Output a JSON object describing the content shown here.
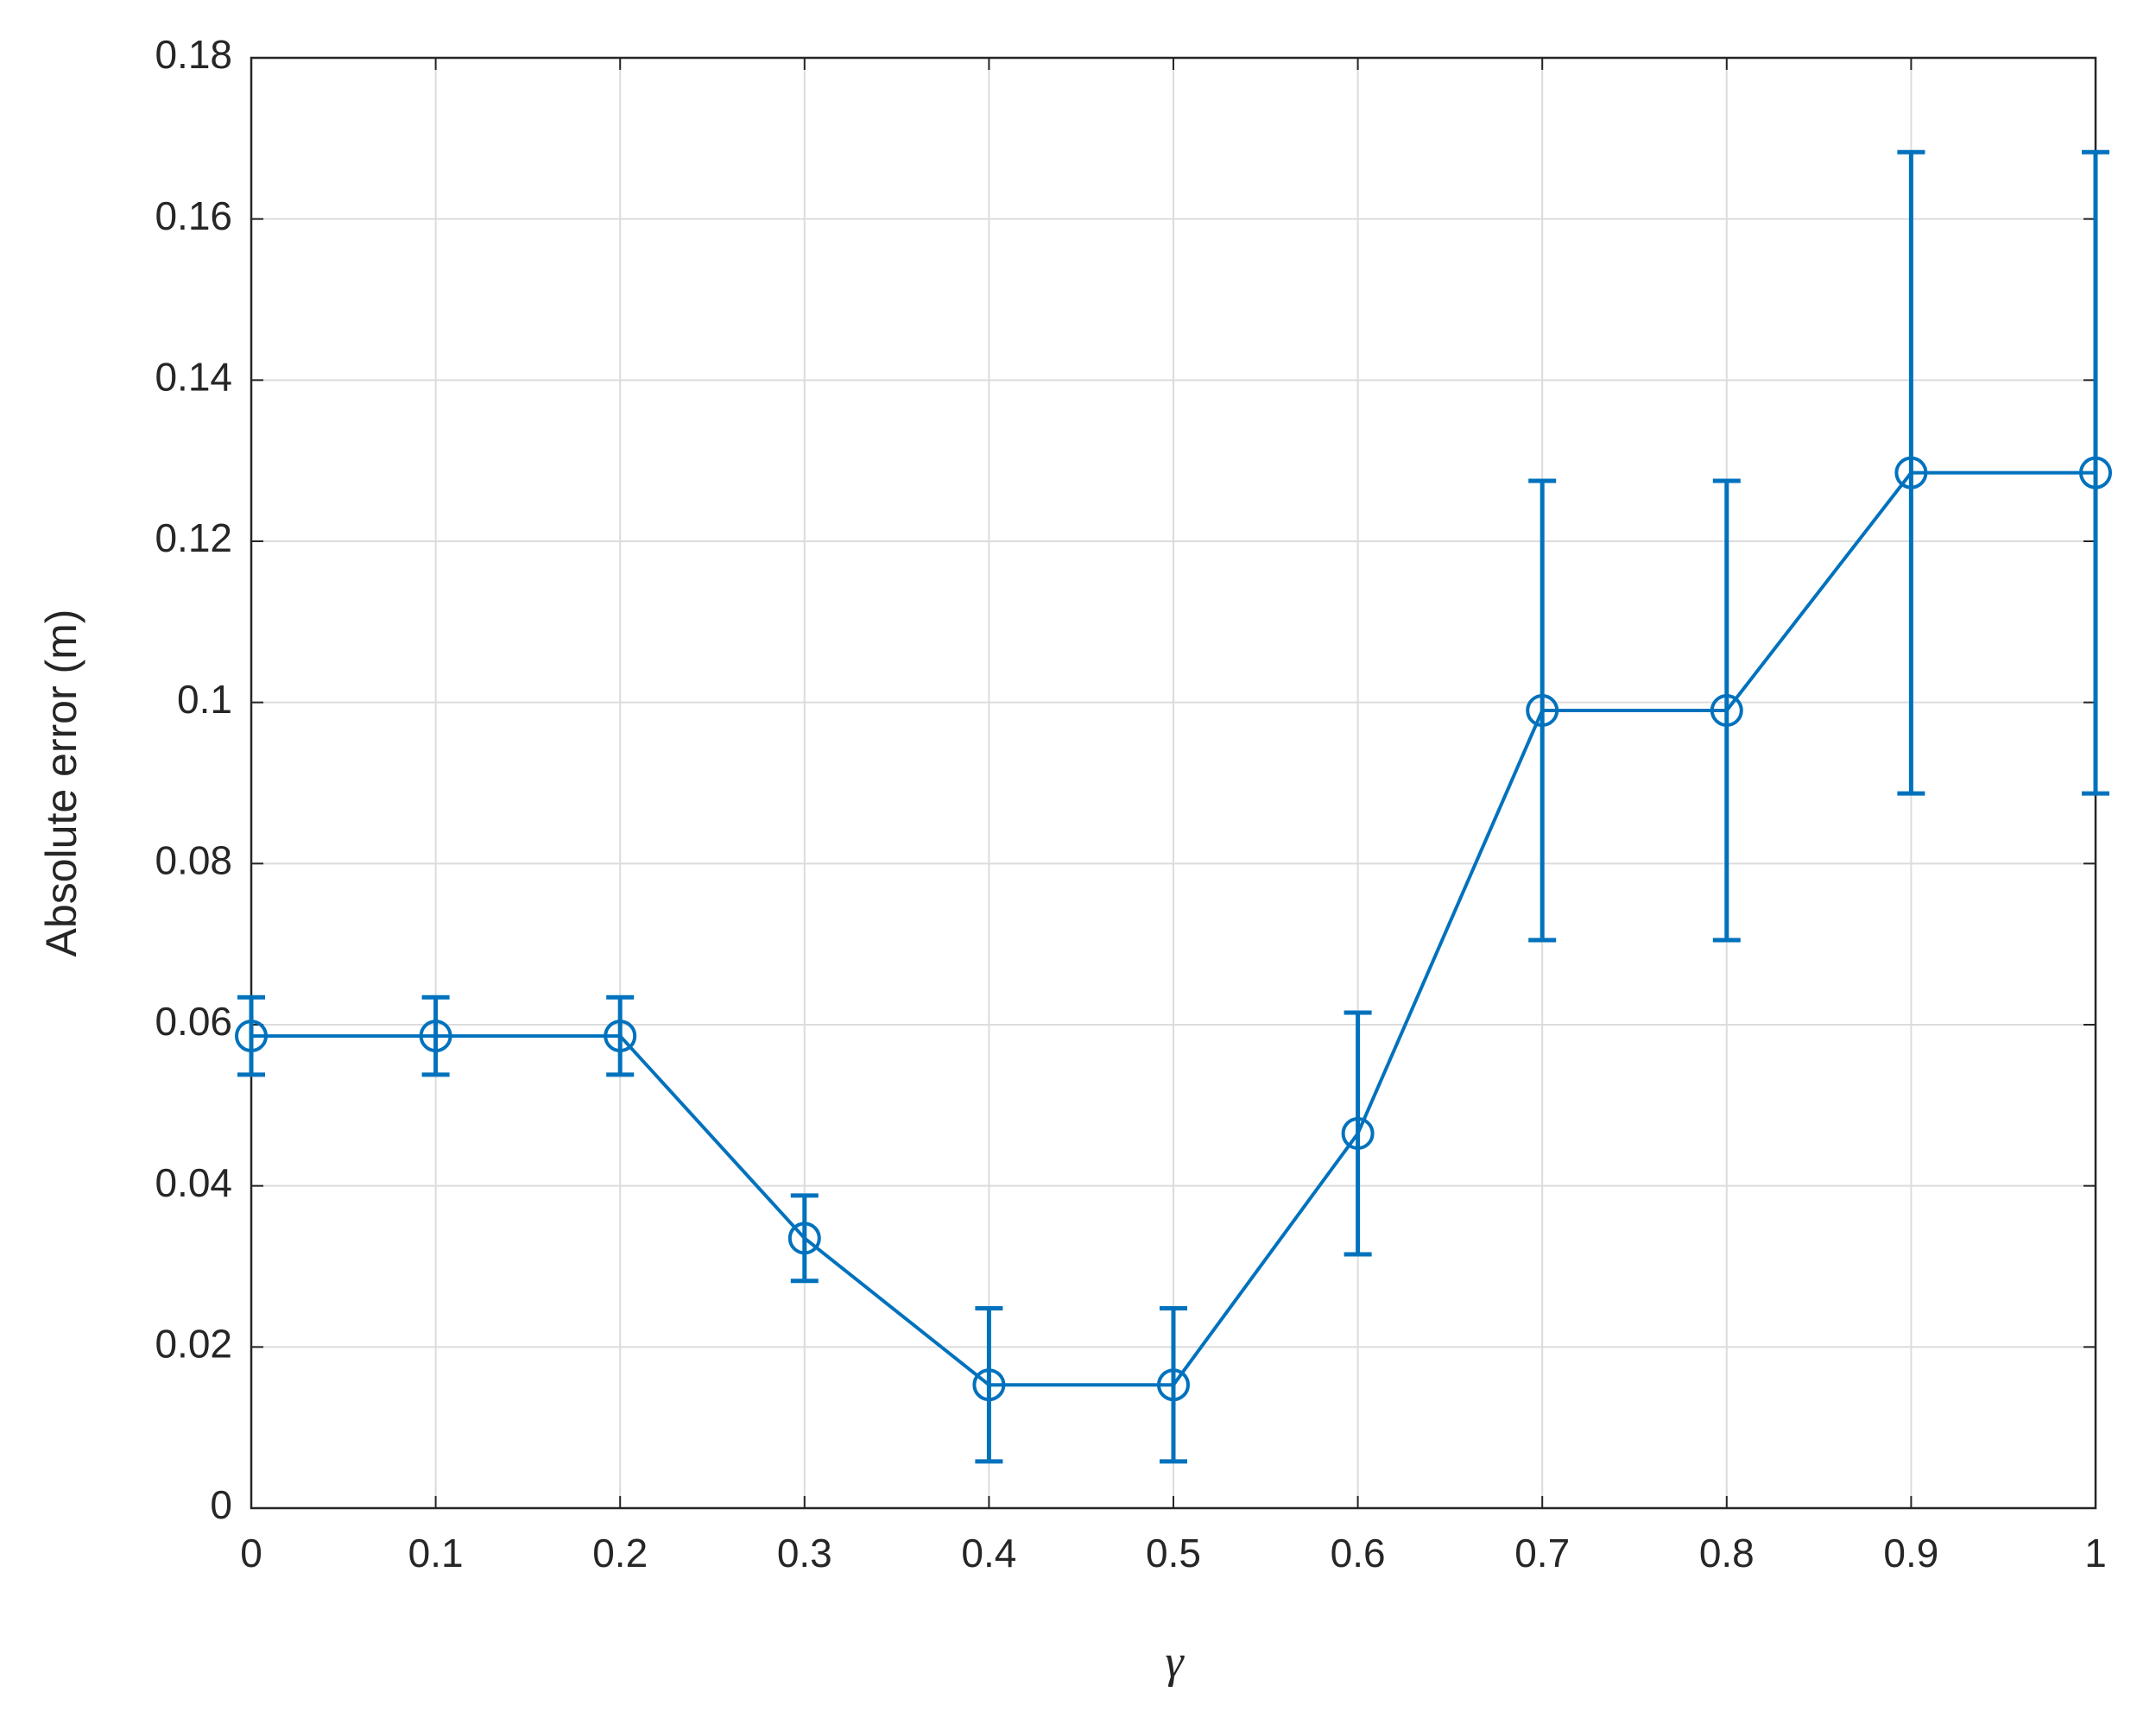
{
  "chart_data": {
    "type": "line",
    "x_label": "γ",
    "y_label": "Absolute error (m)",
    "x": [
      0,
      0.1,
      0.2,
      0.3,
      0.4,
      0.5,
      0.6,
      0.7,
      0.8,
      0.9,
      1
    ],
    "series": [
      {
        "color": "#0072bd",
        "values": [
          0.0586,
          0.0586,
          0.0586,
          0.0335,
          0.0153,
          0.0153,
          0.0465,
          0.099,
          0.099,
          0.1285,
          0.1285
        ],
        "errors": [
          0.0048,
          0.0048,
          0.0048,
          0.0053,
          0.0095,
          0.0095,
          0.015,
          0.0285,
          0.0285,
          0.0398,
          0.0398
        ]
      }
    ],
    "xlim": [
      0,
      1
    ],
    "xticks": [
      0,
      0.1,
      0.2,
      0.3,
      0.4,
      0.5,
      0.6,
      0.7,
      0.8,
      0.9,
      1
    ],
    "ylim": [
      0,
      0.18
    ],
    "yticks": [
      0,
      0.02,
      0.04,
      0.06,
      0.08,
      0.1,
      0.12,
      0.14,
      0.16,
      0.18
    ],
    "grid": true
  }
}
